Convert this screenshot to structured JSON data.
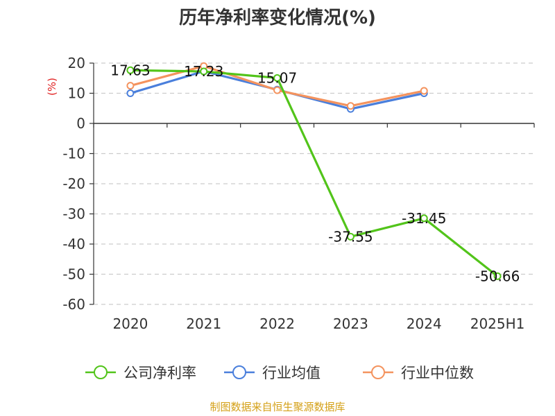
{
  "chart_data": {
    "type": "line",
    "title": "历年净利率变化情况(%)",
    "ylabel": "(%)",
    "xlabel": "",
    "categories": [
      "2020",
      "2021",
      "2022",
      "2023",
      "2024",
      "2025H1"
    ],
    "ylim": [
      -60,
      20
    ],
    "yticks": [
      20,
      10,
      0,
      -10,
      -20,
      -30,
      -40,
      -50,
      -60
    ],
    "grid": true,
    "legend_position": "bottom",
    "series": [
      {
        "name": "公司净利率",
        "color": "#52c41a",
        "values": [
          17.63,
          17.23,
          15.07,
          -37.55,
          -31.45,
          -50.66
        ],
        "labels": [
          "17.63",
          "17.23",
          "15.07",
          "-37.55",
          "-31.45",
          "-50.66"
        ]
      },
      {
        "name": "行业均值",
        "color": "#4a7fdc",
        "values": [
          10.0,
          17.3,
          11.2,
          4.8,
          10.0,
          null
        ]
      },
      {
        "name": "行业中位数",
        "color": "#f4935e",
        "values": [
          12.5,
          19.0,
          11.0,
          5.8,
          10.8,
          null
        ]
      }
    ]
  },
  "source": {
    "text": "制图数据来自恒生聚源数据库",
    "color": "#d4a017"
  },
  "colors": {
    "axis": "#333333",
    "grid": "#cccccc",
    "ylabel": "#e02020"
  }
}
